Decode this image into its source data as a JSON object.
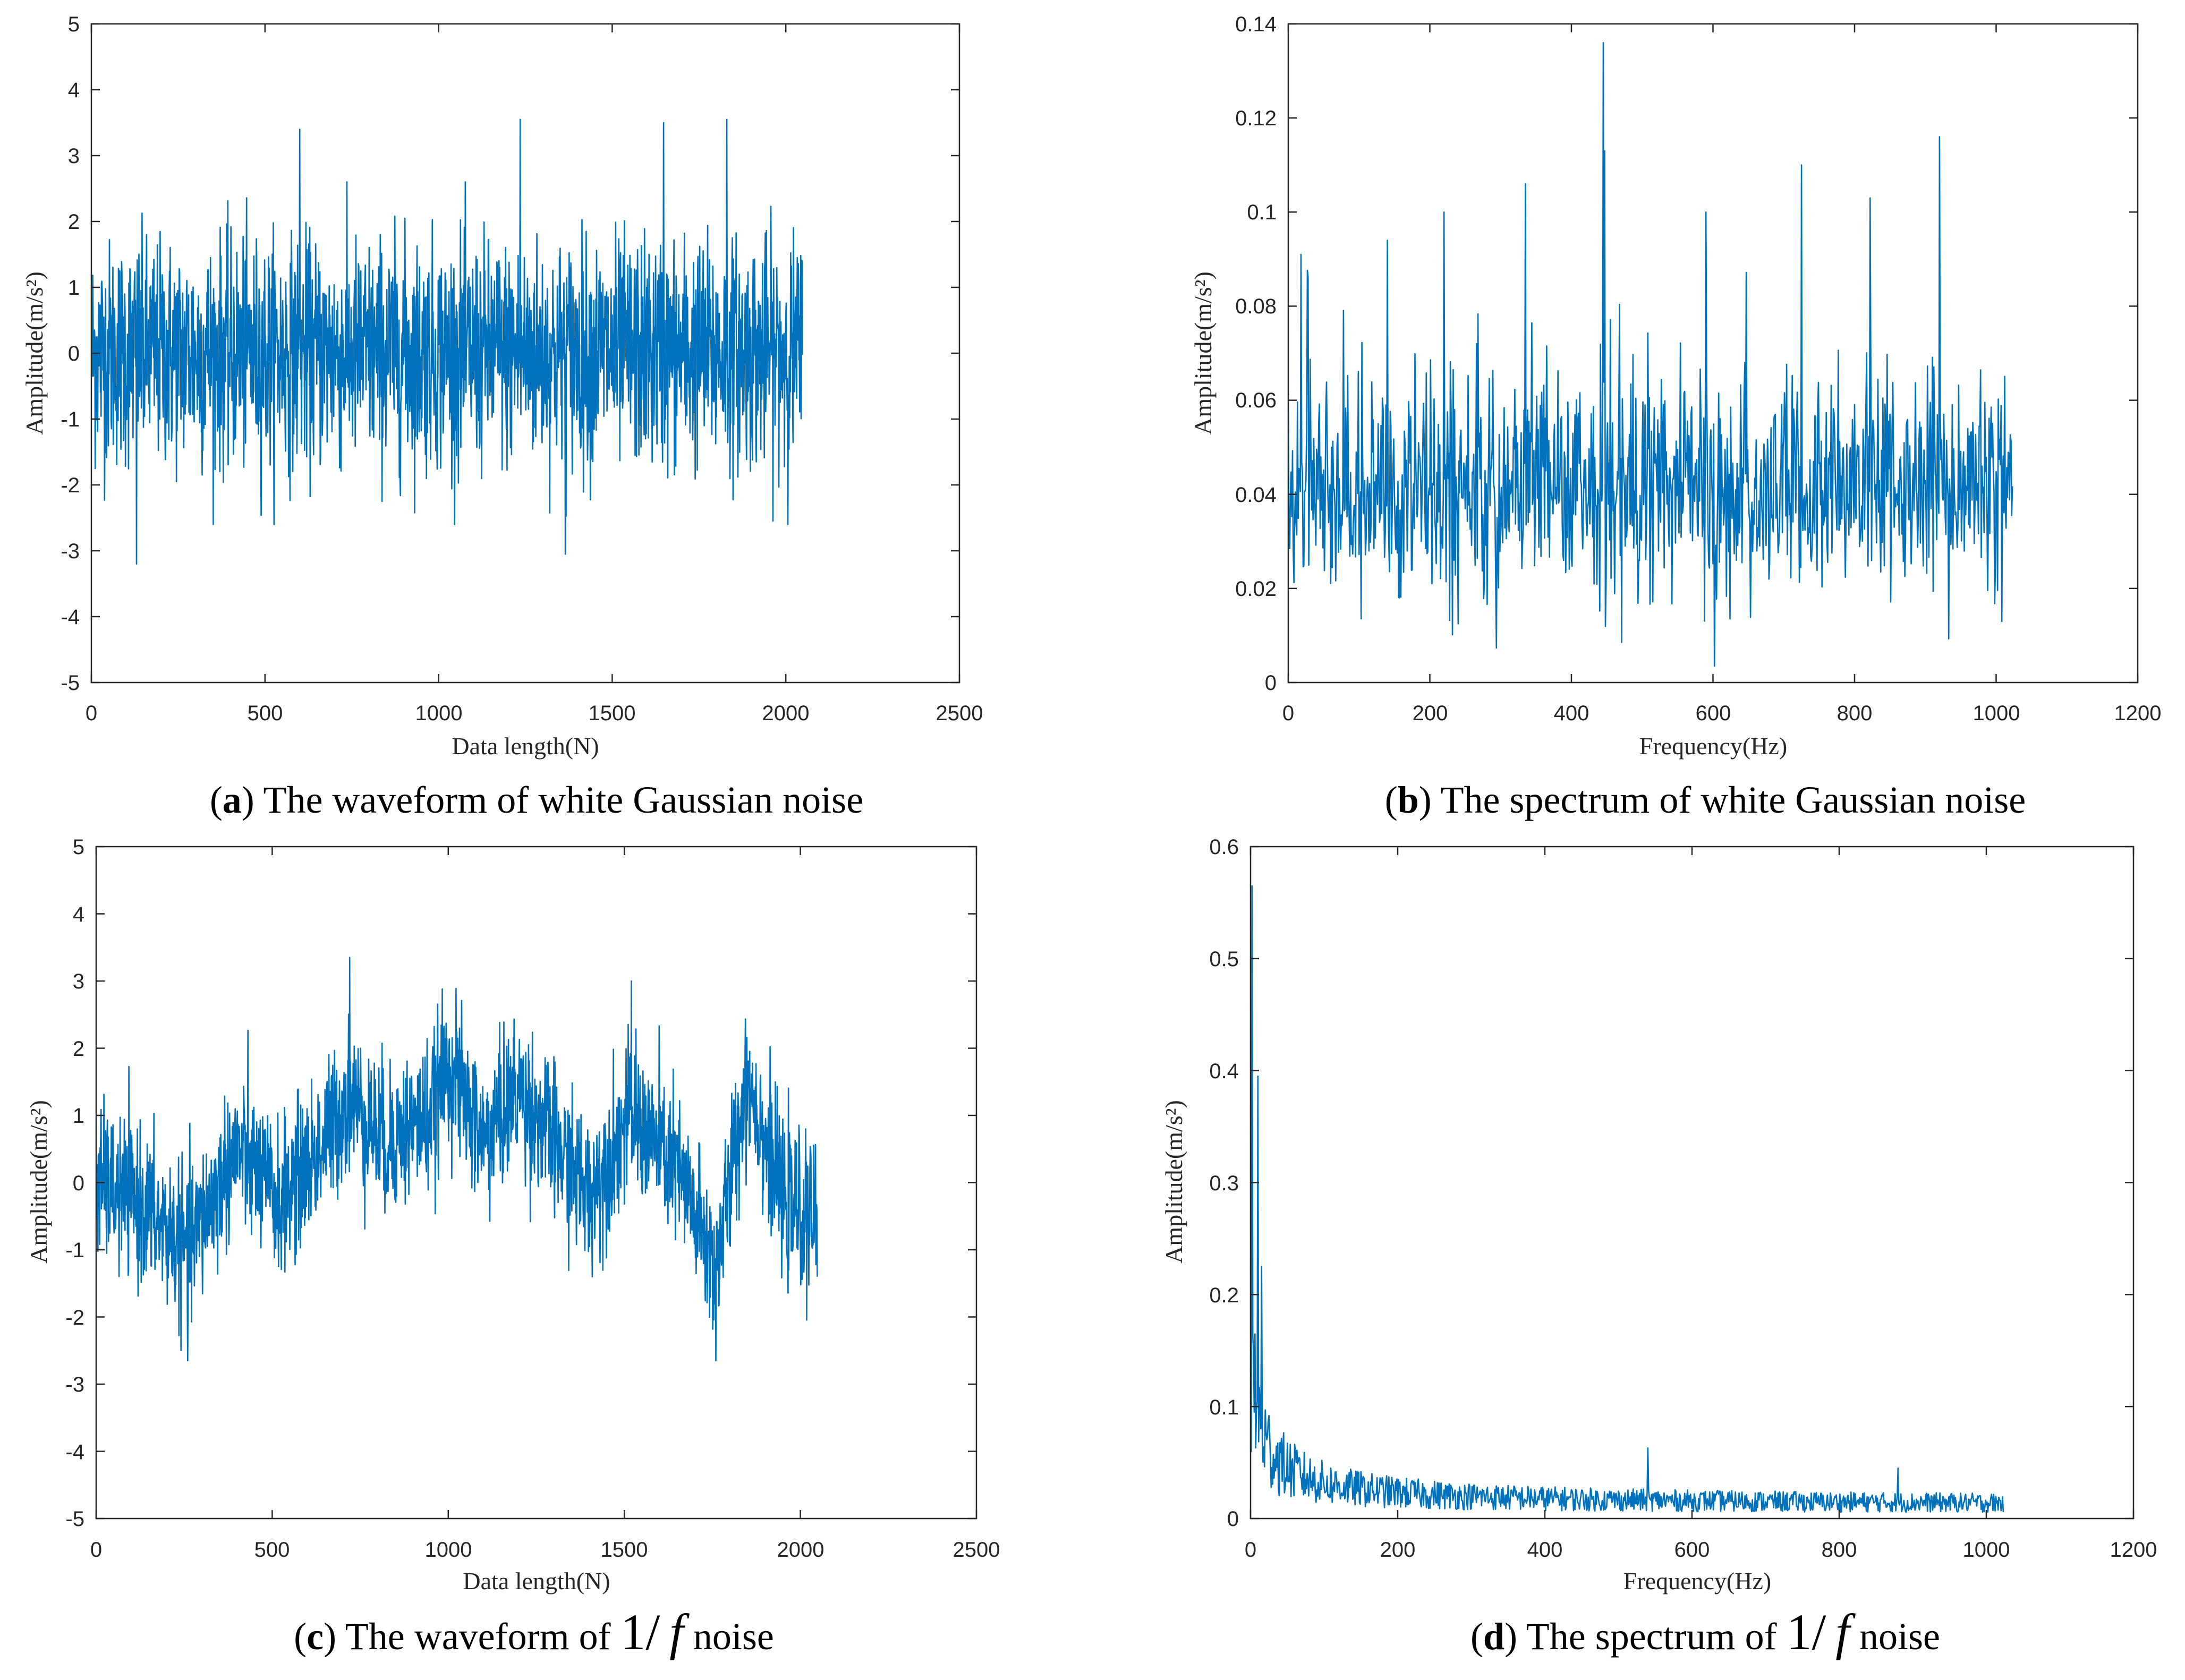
{
  "colors": {
    "line": "#0072bd",
    "axis": "#262626"
  },
  "chart_data": [
    {
      "id": "a",
      "type": "line",
      "signal": "white-gaussian-waveform",
      "caption": {
        "letter": "a",
        "text": "The waveform of white Gaussian noise"
      },
      "xlabel": "Data length(N)",
      "ylabel": "Amplitude(m/s²)",
      "xlim": [
        0,
        2500
      ],
      "ylim": [
        -5,
        5
      ],
      "xticks": [
        0,
        500,
        1000,
        1500,
        2000,
        2500
      ],
      "yticks": [
        -5,
        -4,
        -3,
        -2,
        -1,
        0,
        1,
        2,
        3,
        4,
        5
      ],
      "series": [
        {
          "name": "white Gaussian noise",
          "n": 2048,
          "x_start": 1,
          "x_end": 2048,
          "std": 1.0,
          "min": -3.2,
          "max": 3.6,
          "peaks": [
            [
              130,
              -3.2
            ],
            [
              600,
              3.4
            ],
            [
              1235,
              3.55
            ],
            [
              1365,
              -3.05
            ],
            [
              1648,
              3.5
            ],
            [
              1830,
              3.55
            ]
          ]
        }
      ]
    },
    {
      "id": "b",
      "type": "line",
      "signal": "white-gaussian-spectrum",
      "caption": {
        "letter": "b",
        "text": "The spectrum of white Gaussian noise"
      },
      "xlabel": "Frequency(Hz)",
      "ylabel": "Amplitude(m/s²)",
      "xlim": [
        0,
        1200
      ],
      "ylim": [
        0,
        0.14
      ],
      "xticks": [
        0,
        200,
        400,
        600,
        800,
        1000,
        1200
      ],
      "yticks": [
        0,
        0.02,
        0.04,
        0.06,
        0.08,
        0.1,
        0.12,
        0.14
      ],
      "series": [
        {
          "name": "spectrum",
          "n": 1024,
          "x_start": 0,
          "x_end": 1023,
          "mean": 0.04,
          "min": 0.002,
          "max": 0.136,
          "peaks": [
            [
              18,
              0.091
            ],
            [
              140,
              0.094
            ],
            [
              220,
              0.1
            ],
            [
              335,
              0.106
            ],
            [
              445,
              0.136
            ],
            [
              447,
              0.113
            ],
            [
              590,
              0.1
            ],
            [
              725,
              0.11
            ],
            [
              822,
              0.103
            ],
            [
              920,
              0.116
            ]
          ]
        }
      ]
    },
    {
      "id": "c",
      "type": "line",
      "signal": "pink-waveform",
      "caption": {
        "letter": "c",
        "text_before": "The waveform of",
        "math_num": "1/",
        "math_var": "f",
        "text_after": "noise"
      },
      "xlabel": "Data length(N)",
      "ylabel": "Amplitude(m/s²)",
      "xlim": [
        0,
        2500
      ],
      "ylim": [
        -5,
        5
      ],
      "xticks": [
        0,
        500,
        1000,
        1500,
        2000,
        2500
      ],
      "yticks": [
        -5,
        -4,
        -3,
        -2,
        -1,
        0,
        1,
        2,
        3,
        4,
        5
      ],
      "series": [
        {
          "name": "1/f noise",
          "n": 2048,
          "x_start": 1,
          "x_end": 2048,
          "min": -2.7,
          "max": 3.35,
          "trend": [
            [
              0,
              0
            ],
            [
              120,
              -0.3
            ],
            [
              260,
              -1.0
            ],
            [
              400,
              0.5
            ],
            [
              520,
              -0.3
            ],
            [
              650,
              0.6
            ],
            [
              720,
              1.3
            ],
            [
              820,
              0.6
            ],
            [
              950,
              1.0
            ],
            [
              1000,
              1.8
            ],
            [
              1100,
              0.6
            ],
            [
              1200,
              1.4
            ],
            [
              1300,
              0.6
            ],
            [
              1400,
              -0.2
            ],
            [
              1520,
              1.0
            ],
            [
              1650,
              0.2
            ],
            [
              1760,
              -1.3
            ],
            [
              1850,
              1.6
            ],
            [
              1950,
              -0.3
            ],
            [
              2048,
              -0.6
            ]
          ],
          "peaks": [
            [
              260,
              -2.65
            ],
            [
              720,
              3.35
            ],
            [
              1520,
              3.0
            ],
            [
              1760,
              -2.65
            ]
          ]
        }
      ]
    },
    {
      "id": "d",
      "type": "line",
      "signal": "pink-spectrum",
      "caption": {
        "letter": "d",
        "text_before": "The spectrum of",
        "math_num": "1/",
        "math_var": "f",
        "text_after": "noise"
      },
      "xlabel": "Frequency(Hz)",
      "ylabel": "Amplitude(m/s²)",
      "xlim": [
        0,
        1200
      ],
      "ylim": [
        0,
        0.6
      ],
      "xticks": [
        0,
        200,
        400,
        600,
        800,
        1000,
        1200
      ],
      "yticks": [
        0,
        0.1,
        0.2,
        0.3,
        0.4,
        0.5,
        0.6
      ],
      "series": [
        {
          "name": "spectrum",
          "n": 1024,
          "x_start": 0,
          "x_end": 1023,
          "min": 0.0,
          "max": 0.565,
          "peaks": [
            [
              2,
              0.565
            ],
            [
              10,
              0.395
            ],
            [
              15,
              0.225
            ],
            [
              540,
              0.063
            ],
            [
              880,
              0.045
            ]
          ]
        }
      ]
    }
  ]
}
